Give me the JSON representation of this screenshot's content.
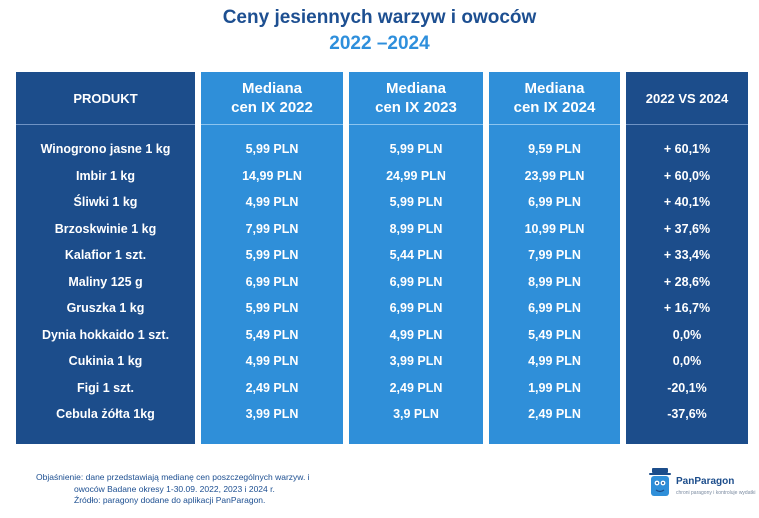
{
  "header": {
    "title": "Ceny jesiennych warzyw i owoców",
    "subtitle": "2022 –2024"
  },
  "table": {
    "headers": {
      "product": "PRODUKT",
      "y2022_line1": "Mediana",
      "y2022_line2": "cen IX 2022",
      "y2023_line1": "Mediana",
      "y2023_line2": "cen IX 2023",
      "y2024_line1": "Mediana",
      "y2024_line2": "cen IX 2024",
      "vs": "2022 VS 2024"
    },
    "rows": [
      {
        "product": "Winogrono jasne 1 kg",
        "y2022": "5,99 PLN",
        "y2023": "5,99 PLN",
        "y2024": "9,59 PLN",
        "vs": "+ 60,1%"
      },
      {
        "product": "Imbir 1 kg",
        "y2022": "14,99 PLN",
        "y2023": "24,99 PLN",
        "y2024": "23,99 PLN",
        "vs": "+ 60,0%"
      },
      {
        "product": "Śliwki 1 kg",
        "y2022": "4,99 PLN",
        "y2023": "5,99 PLN",
        "y2024": "6,99 PLN",
        "vs": "+ 40,1%"
      },
      {
        "product": "Brzoskwinie 1 kg",
        "y2022": "7,99 PLN",
        "y2023": "8,99 PLN",
        "y2024": "10,99 PLN",
        "vs": "+ 37,6%"
      },
      {
        "product": "Kalafior 1 szt.",
        "y2022": "5,99 PLN",
        "y2023": "5,44 PLN",
        "y2024": "7,99 PLN",
        "vs": "+ 33,4%"
      },
      {
        "product": "Maliny 125 g",
        "y2022": "6,99 PLN",
        "y2023": "6,99 PLN",
        "y2024": "8,99 PLN",
        "vs": "+ 28,6%"
      },
      {
        "product": "Gruszka 1 kg",
        "y2022": "5,99 PLN",
        "y2023": "6,99 PLN",
        "y2024": "6,99 PLN",
        "vs": "+ 16,7%"
      },
      {
        "product": "Dynia hokkaido 1 szt.",
        "y2022": "5,49 PLN",
        "y2023": "4,99 PLN",
        "y2024": "5,49 PLN",
        "vs": "0,0%"
      },
      {
        "product": "Cukinia 1 kg",
        "y2022": "4,99 PLN",
        "y2023": "3,99 PLN",
        "y2024": "4,99 PLN",
        "vs": "0,0%"
      },
      {
        "product": "Figi 1 szt.",
        "y2022": "2,49 PLN",
        "y2023": "2,49 PLN",
        "y2024": "1,99 PLN",
        "vs": "-20,1%"
      },
      {
        "product": "Cebula żółta 1kg",
        "y2022": "3,99 PLN",
        "y2023": "3,9 PLN",
        "y2024": "2,49 PLN",
        "vs": "-37,6%"
      }
    ]
  },
  "footnote": {
    "line1": "Objaśnienie: dane przedstawiają medianę cen poszczególnych warzyw. i",
    "line2": "owoców Badane okresy  1-30.09. 2022, 2023 i 2024 r.",
    "line3": "Źródło: paragony dodane do aplikacji PanParagon."
  },
  "logo": {
    "name": "PanParagon",
    "tagline": "chroni paragony i kontroluje wydatki"
  },
  "colors": {
    "dark_blue": "#1c4d8b",
    "light_blue": "#2f8fd9",
    "title_blue": "#1d4f91",
    "subtitle_blue": "#2e8fdc"
  }
}
